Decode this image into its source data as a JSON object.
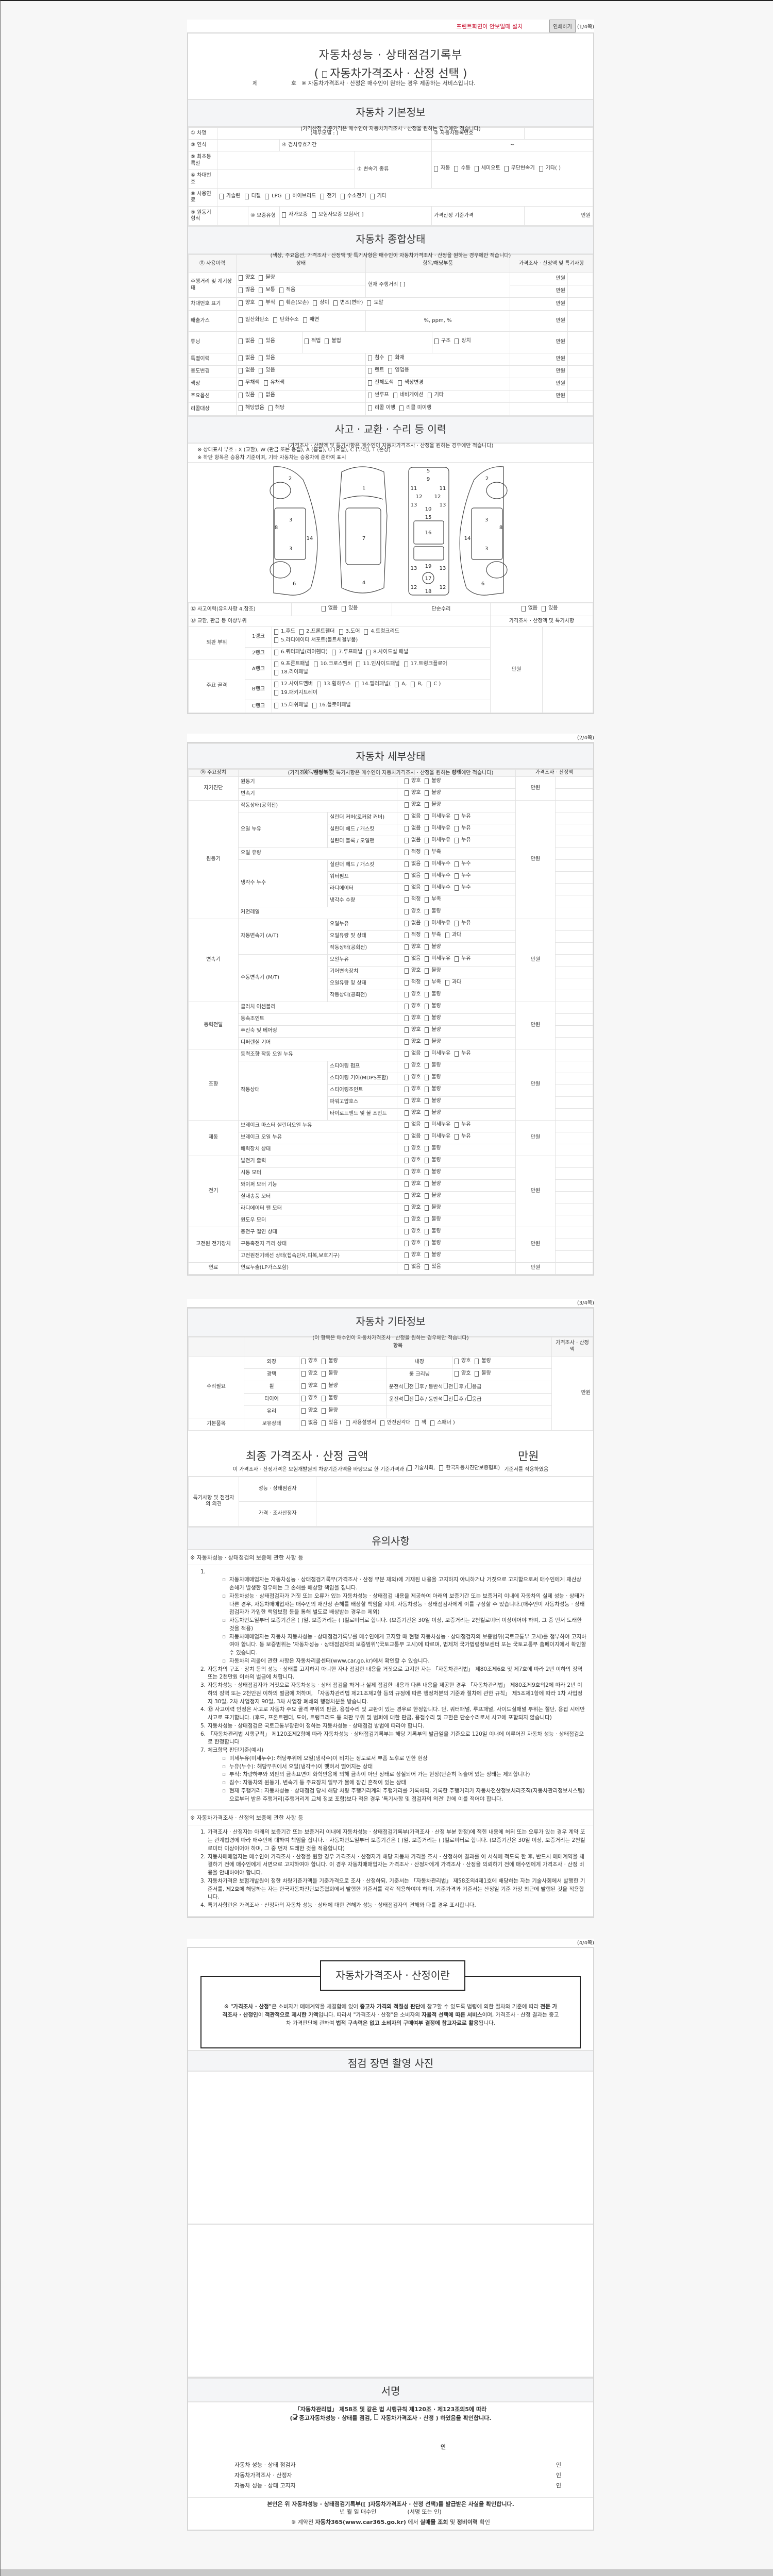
{
  "topbar": {
    "notice": "프린트화면이 안보일때 설치",
    "print_button": "인쇄하기",
    "page": "(1/4쪽)"
  },
  "header": {
    "title": "자동차성능 · 상태점검기록부",
    "subtitle_open": "(",
    "subtitle_option": "자동차가격조사 · 산정 선택",
    "subtitle_close": ")",
    "no_prefix": "제",
    "no_suffix": "호",
    "notice": "※ 자동차가격조사 · 산정은 매수인이 원하는 경우 제공하는 서비스입니다."
  },
  "basic": {
    "title": "자동차 기본정보",
    "subtitle": "(가격산정 기준가격은 매수인이 자동차가격조사 · 산정을 원하는 경우에만 적습니다)",
    "name_label": "① 차명",
    "detail_model": "(세부모델 :               )",
    "reg_no_label": "② 자동차등록번호",
    "year_label": "③ 연식",
    "inspection_label": "④ 검사유효기간",
    "inspection_range": "~",
    "first_reg_label": "⑤ 최초등록일",
    "vin_label": "⑥ 차대번호",
    "transmission_label": "⑦ 변속기 종류",
    "transmission_options": [
      "자동",
      "수동",
      "세미오토",
      "무단변속기",
      "기타(          )"
    ],
    "fuel_label": "⑧ 사용연료",
    "fuel_options": [
      "가솔린",
      "디젤",
      "LPG",
      "하이브리드",
      "전기",
      "수소전기",
      "기타"
    ],
    "engine_label": "⑨ 원동기형식",
    "warranty_label": "⑩ 보증유형",
    "warranty_options": [
      "자가보증",
      "보험사보증 보험사[          ]"
    ],
    "base_price_label": "가격산정 기준가격",
    "unit": "만원"
  },
  "overall": {
    "title": "자동차 종합상태",
    "subtitle": "(색상, 주요옵션, 가격조사 · 산정액 및 특기사항은 매수인이 자동차가격조사 · 산정을 원하는 경우에만 적습니다)",
    "headers": [
      "⑪ 사용이력",
      "상태",
      "항목/해당부품",
      "가격조사 · 산정액 및 특기사항"
    ],
    "unit": "만원",
    "mileage": {
      "label": "주행거리 및 계기상태",
      "state1": [
        "양호",
        "불량"
      ],
      "state2": [
        "많음",
        "보통",
        "적음"
      ],
      "item": "현재 주행거리 [                    ]"
    },
    "vin_mark": {
      "label": "차대번호 표기",
      "options": [
        "양호",
        "부식",
        "훼손(오손)",
        "상이",
        "변조(변타)",
        "도말"
      ]
    },
    "emission": {
      "label": "배출가스",
      "options": [
        "일산화탄소",
        "탄화수소",
        "매연"
      ],
      "item": "%,        ppm,        %"
    },
    "tuning": {
      "label": "튜닝",
      "state": [
        "없음",
        "있음"
      ],
      "legality": [
        "적법",
        "불법"
      ],
      "kind": [
        "구조",
        "장치"
      ]
    },
    "rows": [
      {
        "label": "특별이력",
        "state": [
          "없음",
          "있음"
        ],
        "items": [
          "침수",
          "화재"
        ]
      },
      {
        "label": "용도변경",
        "state": [
          "없음",
          "있음"
        ],
        "items": [
          "렌트",
          "영업용"
        ]
      },
      {
        "label": "색상",
        "state": [
          "무채색",
          "유채색"
        ],
        "items": [
          "전체도색",
          "색상변경"
        ]
      },
      {
        "label": "주요옵션",
        "state": [
          "있음",
          "없음"
        ],
        "items": [
          "썬루프",
          "네비게이션",
          "기타"
        ]
      }
    ],
    "recall": {
      "label": "리콜대상",
      "state": [
        "해당없음",
        "해당"
      ],
      "items": [
        "리콜 이행",
        "리콜 미이행"
      ]
    }
  },
  "accident": {
    "title": "사고 · 교환 · 수리 등 이력",
    "subtitle": "(가격조사 · 산정액 및 특기사항은 매수인이 자동차가격조사 · 산정을 원하는 경우에만 적습니다)",
    "notes": [
      "※ 상태표시 부호 : X (교환), W (판금 또는 용접), A (흠집), U (요철), C (부식), T (손상)",
      "※ 하단 항목은 승용차 기준이며, 기타 자동차는 승용차에 준하여 표시"
    ],
    "diagram_part_numbers": [
      "2",
      "3",
      "8",
      "14",
      "3",
      "6",
      "1",
      "7",
      "4",
      "5",
      "9",
      "11",
      "11",
      "12",
      "12",
      "13",
      "13",
      "10",
      "15",
      "16",
      "19",
      "13",
      "13",
      "17",
      "12",
      "12",
      "18",
      "2",
      "3",
      "8",
      "14",
      "3",
      "6"
    ],
    "history_label": "⑫ 사고이력(유의사항 4.참조)",
    "history_options": [
      "없음",
      "있음"
    ],
    "simple_repair_label": "단순수리",
    "simple_repair_options": [
      "없음",
      "있음"
    ],
    "parts_label": "⑬ 교환, 판금 등 이상부위",
    "price_label": "가격조사 · 산정액 및 특기사항",
    "unit": "만원",
    "groups": [
      {
        "name": "외판 부위",
        "ranks": [
          {
            "rank": "1랭크",
            "parts": [
              "1.후드",
              "2.프론트휀더",
              "3.도어",
              "4.트렁크리드",
              "5.라디에이터 서포트(볼트체결부품)"
            ]
          },
          {
            "rank": "2랭크",
            "parts": [
              "6.쿼터패널(리어휀다)",
              "7.루프패널",
              "8.사이드실 패널"
            ]
          }
        ]
      },
      {
        "name": "주요 골격",
        "ranks": [
          {
            "rank": "A랭크",
            "parts": [
              "9.프론트패널",
              "10.크로스멤버",
              "11.인사이드패널",
              "17.트렁크플로어",
              "18.리어패널"
            ]
          },
          {
            "rank": "B랭크",
            "parts": [
              "12.사이드멤버",
              "13.휠하우스",
              "14.필러패널(",
              "A,",
              "B,",
              "C )",
              "19.패키지트레이"
            ]
          },
          {
            "rank": "C랭크",
            "parts": [
              "15.대쉬패널",
              "16.플로어패널"
            ]
          }
        ]
      }
    ]
  },
  "page2": {
    "page": "(2/4쪽)"
  },
  "detail": {
    "title": "자동차 세부상태",
    "subtitle": "(가격조사 · 산정액 및 특기사항은 매수인이 자동차가격조사 · 산정을 원하는 경우에만 적습니다)",
    "headers": [
      "⑭ 주요장치",
      "항목/해당부품",
      "상태",
      "가격조사 · 산정액"
    ],
    "unit": "만원",
    "options": {
      "gb": [
        "양호",
        "불량"
      ],
      "leak": [
        "없음",
        "미세누유",
        "누유"
      ],
      "water": [
        "없음",
        "미세누수",
        "누수"
      ],
      "qty": [
        "적정",
        "부족"
      ],
      "qty3": [
        "적정",
        "부족",
        "과다"
      ],
      "yn": [
        "없음",
        "있음"
      ]
    },
    "groups": [
      {
        "name": "자기진단",
        "items": [
          {
            "label": "원동기",
            "opts": "gb"
          },
          {
            "label": "변속기",
            "opts": "gb"
          }
        ]
      },
      {
        "name": "원동기",
        "items": [
          {
            "label": "작동상태(공회전)",
            "opts": "gb"
          },
          {
            "label": "오일 누유",
            "subs": [
              {
                "label": "실린더 커버(로커암 커버)",
                "opts": "leak"
              },
              {
                "label": "실린더 헤드 / 개스킷",
                "opts": "leak"
              },
              {
                "label": "실린더 블록 / 오일팬",
                "opts": "leak"
              }
            ]
          },
          {
            "label": "오일 유량",
            "opts": "qty"
          },
          {
            "label": "냉각수 누수",
            "subs": [
              {
                "label": "실린더 헤드 / 개스킷",
                "opts": "water"
              },
              {
                "label": "워터펌프",
                "opts": "water"
              },
              {
                "label": "라디에이터",
                "opts": "water"
              },
              {
                "label": "냉각수 수량",
                "opts": "qty"
              }
            ]
          },
          {
            "label": "커먼레일",
            "opts": "gb"
          }
        ]
      },
      {
        "name": "변속기",
        "items": [
          {
            "label": "자동변속기 (A/T)",
            "subs": [
              {
                "label": "오일누유",
                "opts": "leak"
              },
              {
                "label": "오일유량 및 상태",
                "opts": "qty3"
              },
              {
                "label": "작동상태(공회전)",
                "opts": "gb"
              }
            ]
          },
          {
            "label": "수동변속기 (M/T)",
            "subs": [
              {
                "label": "오일누유",
                "opts": "leak"
              },
              {
                "label": "기어변속장치",
                "opts": "gb"
              },
              {
                "label": "오일유량 및 상태",
                "opts": "qty3"
              },
              {
                "label": "작동상태(공회전)",
                "opts": "gb"
              }
            ]
          }
        ]
      },
      {
        "name": "동력전달",
        "items": [
          {
            "label": "클러치 어셈블리",
            "opts": "gb"
          },
          {
            "label": "등속조인트",
            "opts": "gb"
          },
          {
            "label": "추진축 및 베어링",
            "opts": "gb"
          },
          {
            "label": "디퍼렌셜 기어",
            "opts": "gb"
          }
        ]
      },
      {
        "name": "조향",
        "items": [
          {
            "label": "동력조향 작동 오일 누유",
            "opts": "leak"
          },
          {
            "label": "작동상태",
            "subs": [
              {
                "label": "스티어링 펌프",
                "opts": "gb"
              },
              {
                "label": "스티어링 기어(MDPS포함)",
                "opts": "gb"
              },
              {
                "label": "스티어링조인트",
                "opts": "gb"
              },
              {
                "label": "파워고압호스",
                "opts": "gb"
              },
              {
                "label": "타이로드엔드 및 볼 조인트",
                "opts": "gb"
              }
            ]
          }
        ]
      },
      {
        "name": "제동",
        "items": [
          {
            "label": "브레이크 마스터 실린더오일 누유",
            "opts": "leak"
          },
          {
            "label": "브레이크 오일 누유",
            "opts": "leak"
          },
          {
            "label": "배력장치 상태",
            "opts": "gb"
          }
        ]
      },
      {
        "name": "전기",
        "items": [
          {
            "label": "발전기 출력",
            "opts": "gb"
          },
          {
            "label": "시동 모터",
            "opts": "gb"
          },
          {
            "label": "와이퍼 모터 기능",
            "opts": "gb"
          },
          {
            "label": "실내송풍 모터",
            "opts": "gb"
          },
          {
            "label": "라디에이터 팬 모터",
            "opts": "gb"
          },
          {
            "label": "윈도우 모터",
            "opts": "gb"
          }
        ]
      },
      {
        "name": "고전원 전기장치",
        "items": [
          {
            "label": "충전구 절연 상태",
            "opts": "gb"
          },
          {
            "label": "구동축전지 격리 상태",
            "opts": "gb"
          },
          {
            "label": "고전원전기배선 상태(접속단자,피복,보호기구)",
            "opts": "gb"
          }
        ]
      },
      {
        "name": "연료",
        "items": [
          {
            "label": "연료누출(LP가스포함)",
            "opts": "yn"
          }
        ]
      }
    ]
  },
  "page3": {
    "page": "(3/4쪽)"
  },
  "other": {
    "title": "자동차 기타정보",
    "subtitle": "(이 항목은 매수인이 자동차가격조사 · 산정을 원하는 경우에만 적습니다)",
    "item_header": "항목",
    "price_header": "가격조사 · 산정액",
    "repair_label": "수리필요",
    "unit": "만원",
    "gb": [
      "양호",
      "불량"
    ],
    "exterior": "외장",
    "interior": "내장",
    "polish": "광택",
    "room_cleaning": "룸 크리닝",
    "wheel": "휠",
    "tire": "타이어",
    "glass": "유리",
    "positions": [
      "운전석",
      "전",
      "후",
      "/ 동반석",
      "전",
      "후",
      "/",
      "응급"
    ],
    "basic_items_label": "기본품목",
    "holding_label": "보유상태",
    "holding_state": [
      "없음",
      "있음 ("
    ],
    "holding_items": [
      "사용설명서",
      "안전삼각대",
      "잭",
      "스패너 )"
    ]
  },
  "final": {
    "title": "최종 가격조사 · 산정 금액",
    "unit": "만원",
    "statement_before": "이 가격조사 · 산정가격은 보험개발원의 차량기준가액을 바탕으로 한 기준가격과 (",
    "statement_opts": [
      "기술사회,",
      "한국자동차진단보증협회)"
    ],
    "statement_after": "기준서를 적용하였음"
  },
  "opinion": {
    "label": "특기사항 및 점검자의 의견",
    "inspector": "성능 · 상태점검자",
    "appraiser": "가격 · 조사산정자"
  },
  "notes": {
    "title": "유의사항",
    "sections": [
      {
        "heading": "※ 자동차성능 · 상태점검의 보증에 관한 사항 등",
        "items": [
          {
            "num": "1.",
            "text": "",
            "bullets": [
              "자동차매매업자는 자동차성능 · 상태점검기록부(가격조사 · 산정 부분 제외)에 기재된 내용을 고지하지 아니하거나 거짓으로 고지함으로써 매수인에게 재산상 손해가 발생한 경우에는 그 손해를 배상할 책임을 집니다.",
              "자동차성능 · 상태점검자가 거짓 또는 오류가 있는 자동차성능 · 상태점검 내용을 제공하여 아래의 보증기간 또는 보증거리 이내에 자동차의 실제 성능 · 상태가 다른 경우, 자동차매매업자는 매수인의 재산상 손해를 배상할 책임을 지며, 자동차성능 · 상태점검자에게 이를 구상할 수 있습니다.(매수인이 자동차성능 · 상태점검자가 가입한 책임보험 등을 통해 별도로 배상받는 경우는 제외)",
              "자동차인도일부터 보증기간은 (      )일, 보증거리는 (      )킬로미터로 합니다. (보증기간은 30일 이상, 보증거리는 2천킬로미터 이상이어야 하며, 그 중 먼저 도래한 것을 적용)",
              "자동차매매업자는 자동차 자동차성능 · 상태점검기록부를 매수인에게 고지할 때 현행 자동차성능 · 상태점검자의 보증범위(국토교통부 고시)를 첨부하여 고지하여야 합니다. 동 보증범위는 '자동차성능 · 상태점검자의 보증범위'(국토교통부 고시)에 따르며, 법제처 국가법령정보센터 또는 국토교통부 홈페이지에서 확인할 수 있습니다.",
              "자동차의 리콜에 관한 사항은 자동차리콜센터(www.car.go.kr)에서 확인할 수 있습니다."
            ]
          },
          {
            "num": "2.",
            "text": "자동차의 구조 · 장치 등의 성능 · 상태를 고지하지 아니한 자나 점검한 내용을 거짓으로 고지한 자는 「자동차관리법」 제80조제6호 및 제7호에 따라 2년 이하의 징역 또는 2천만원 이하의 벌금에 처합니다."
          },
          {
            "num": "3.",
            "text": "자동차성능 · 상태점검자가 거짓으로 자동차성능 · 상태 점검을 하거나 실제 점검한 내용과 다른 내용을 제공한 경우 「자동차관리법」 제80조제9호의2에 따라 2년 이하의 징역 또는 2천만원 이하의 벌금에 처하며, 「자동차관리법 제21조제2항 등의 규정에 따른 행정처분의 기준과 절차에 관한 규칙」 제5조제1항에 따라 1차 사업정지 30일, 2차 사업정지 90일, 3차 사업장 폐쇄의 행정처분을 받습니다."
          },
          {
            "num": "4.",
            "text": "⑫ 사고이력 인정은 사고로 자동차 주요 골격 부위의 판금, 용접수리 및 교환이 있는 경우로 한정합니다. 단, 쿼터패널, 루프패널, 사이드실패널 부위는 절단, 용접 시에만 사고로 표기합니다. (후드, 프론트펜더, 도어, 트렁크리드 등 외판 부위 및 범퍼에 대한 판금, 용접수리 및 교환은 단순수리로서 사고에 포함되지 않습니다)"
          },
          {
            "num": "5.",
            "text": "자동차성능 · 상태점검은 국토교통부장관이 정하는 자동차성능 · 상태점검 방법에 따라야 합니다."
          },
          {
            "num": "6.",
            "text": "「자동차관리법 시행규칙」 제120조제2항에 따라 자동차성능 · 상태점검기록부는 해당 기록부의 발급일을 기준으로 120일 이내에 이루어진 자동차 성능 · 상태점검으로 한정합니다"
          },
          {
            "num": "7.",
            "text": "체크항목 판단기준(예시)",
            "bullets": [
              "미세누유(미세누수): 해당부위에 오일(냉각수)이 비치는 정도로서 부품 노후로 인한 현상",
              "누유(누수): 해당부위에서 오일(냉각수)이 맺혀서 떨어지는 상태",
              "부식: 차량하부와 외판의 금속표면이 화학반응에 의해 금속이 아닌 상태로 상실되어 가는 현상(단순히 녹슬어 있는 상태는 제외합니다)",
              "침수: 자동차의 원동기, 변속기 등 주요장치 일부가 물에 잠긴 흔적이 있는 상태",
              "현재 주행거리: 자동차성능 · 상태점검 당시 해당 차량 주행거리계의 주행거리를 기록하되, 기록한 주행거리가 자동차전산정보처리조직(자동차관리정보시스템)으로부터 받은 주행거리(주행거리계 교체 정보 포함)보다 적은 경우 '특기사항 및 점검자의 의견' 란에 이를 적어야 합니다."
            ]
          }
        ]
      },
      {
        "heading": "※ 자동차가격조사 · 산정의 보증에 관한 사항 등",
        "items": [
          {
            "num": "1.",
            "text": "가격조사 · 산정자는 아래의 보증기간 또는 보증거리 이내에 자동차성능 · 상태점검기록부(가격조사 · 산정 부분 한정)에 적힌 내용에 허위 또는 오류가 있는 경우 계약 또는 관계법령에 따라 매수인에 대하여 책임을 집니다. · 자동차인도일부터 보증기간은 (      )일, 보증거리는 (      )킬로미터로 합니다. (보증기간은 30일 이상, 보증거리는 2천킬로미터 이상이어야 하며, 그 중 먼저 도래한 것을 적용합니다)"
          },
          {
            "num": "2.",
            "text": "자동차매매업자는 매수인이 가격조사 · 산정을 원할 경우 가격조사 · 산정자가 해당 자동차 가격을 조사 · 산정하여 결과를 이 서식에 적도록 한 후, 반드시 매매계약을 체결하기 전에 매수인에게 서면으로 고지하여야 합니다. 이 경우 자동차매매업자는 가격조사 · 산정자에게 가격조사 · 산정을 의뢰하기 전에 매수인에게 가격조사 · 산정 비용을 안내하여야 합니다."
          },
          {
            "num": "3.",
            "text": "자동차가격은 보험개발원이 정한 차량기준가액을 기준가격으로 조사 · 산정하되, 기준서는 「자동차관리법」 제58조의4제1호에 해당하는 자는 기술사회에서 발행한 기준서를, 제2호에 해당하는 자는 한국자동차진단보증협회에서 발행한 기준서를 각각 적용하여야 하며, 기준가격과 기준서는 산정일 기준 가장 최근에 발행된 것을 적용합니다."
          },
          {
            "num": "4.",
            "text": "특기사항란은 가격조사 · 산정자의 자동차 성능 · 상태에 대한 견해가 성능 · 상태점검자의 견해와 다를 경우 표시합니다."
          }
        ]
      }
    ]
  },
  "page4": {
    "page": "(4/4쪽)"
  },
  "about": {
    "title": "자동차가격조사 · 산정이란",
    "segments": [
      {
        "t": "※ ",
        "b": false
      },
      {
        "t": "\"가격조사 · 산정\"",
        "b": true
      },
      {
        "t": "은 소비자가 매매계약을 체결함에 있어 ",
        "b": false
      },
      {
        "t": "중고차 가격의 적절성 판단",
        "b": true
      },
      {
        "t": "에 참고할 수 있도록 법령에 의한 절차와 기준에 따라 ",
        "b": false
      },
      {
        "t": "전문 가격조사 · 산정인",
        "b": true
      },
      {
        "t": "이 ",
        "b": false
      },
      {
        "t": "객관적으로 제시한 가액",
        "b": true
      },
      {
        "t": "입니다. 따라서 \"가격조사 · 산정\"은 소비자의 ",
        "b": false
      },
      {
        "t": "자율적 선택에 따른 서비스",
        "b": true
      },
      {
        "t": "이며, 가격조사 · 산정 결과는 중고차 가격판단에 관하여 ",
        "b": false
      },
      {
        "t": "법적 구속력은 없고 소비자의 구매여부 결정에 참고자료로 활용",
        "b": true
      },
      {
        "t": "됩니다.",
        "b": false
      }
    ]
  },
  "photos": {
    "title": "점검 장면 촬영 사진"
  },
  "signature": {
    "title": "서명",
    "law": "「자동차관리법」 제58조 및 같은 법 시행규칙 제120조 · 제123조의5에 따라",
    "confirm_open": "(",
    "opt_checked": "중고자동차성능 · 상태를 점검,",
    "opt_unchecked": "자동차가격조사  ·  산정",
    "confirm_close": ") 하였음을 확인합니다.",
    "seal": "인",
    "signers": [
      {
        "role": "자동차 성능 · 상태 점검자",
        "seal": "인"
      },
      {
        "role": "자동차가격조사  ·  산정자",
        "seal": "인"
      },
      {
        "role": "자동차 성능 · 상태 고지자",
        "seal": "인"
      }
    ],
    "receipt": "본인은 위 자동차성능  ·  상태점검기록부([   ]자동차가격조사  ·  산정 선택)를 발급받은 사실을 확인합니다.",
    "date_line": "년    월    일      매수인",
    "sign_hint": "(서명 또는 인)"
  },
  "footnote": [
    {
      "t": "※ 계약전 ",
      "b": false
    },
    {
      "t": "자동차365(www.car365.go.kr)",
      "b": true
    },
    {
      "t": " 에서 ",
      "b": false
    },
    {
      "t": "실매물 조회",
      "b": true
    },
    {
      "t": " 및 ",
      "b": false
    },
    {
      "t": "정비이력",
      "b": true
    },
    {
      "t": " 확인",
      "b": false
    }
  ]
}
